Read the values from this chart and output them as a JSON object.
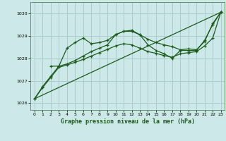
{
  "title": "Graphe pression niveau de la mer (hPa)",
  "bg_color": "#cce8e8",
  "grid_color": "#aacccc",
  "line_color": "#1a5c1a",
  "xlim": [
    -0.5,
    23.5
  ],
  "ylim": [
    1025.7,
    1030.5
  ],
  "yticks": [
    1026,
    1027,
    1028,
    1029,
    1030
  ],
  "xticks": [
    0,
    1,
    2,
    3,
    4,
    5,
    6,
    7,
    8,
    9,
    10,
    11,
    12,
    13,
    14,
    15,
    16,
    17,
    18,
    19,
    20,
    21,
    22,
    23
  ],
  "series1_x": [
    0,
    1,
    2,
    3,
    4,
    5,
    6,
    7,
    8,
    9,
    10,
    11,
    12,
    13,
    14,
    15,
    16,
    17,
    18,
    19,
    20,
    21,
    22,
    23
  ],
  "series1_y": [
    1026.2,
    1026.75,
    1027.2,
    1027.65,
    1027.75,
    1027.9,
    1028.1,
    1028.3,
    1028.45,
    1028.6,
    1029.05,
    1029.2,
    1029.2,
    1029.05,
    1028.6,
    1028.35,
    1028.2,
    1028.0,
    1028.35,
    1028.35,
    1028.35,
    1028.8,
    1029.5,
    1030.05
  ],
  "series2_x": [
    0,
    1,
    2,
    3,
    4,
    5,
    6,
    7,
    8,
    9,
    10,
    11,
    12,
    13,
    14,
    15,
    16,
    17,
    18,
    19,
    20,
    21,
    22,
    23
  ],
  "series2_y": [
    1026.2,
    1026.7,
    1027.15,
    1027.6,
    1027.7,
    1027.82,
    1027.95,
    1028.1,
    1028.25,
    1028.4,
    1028.55,
    1028.65,
    1028.6,
    1028.45,
    1028.3,
    1028.22,
    1028.12,
    1028.05,
    1028.2,
    1028.25,
    1028.3,
    1028.55,
    1028.9,
    1030.05
  ],
  "series3_x": [
    2,
    3,
    4,
    5,
    6,
    7,
    8,
    9,
    10,
    11,
    12,
    13,
    14,
    15,
    16,
    17,
    18,
    19,
    20,
    21,
    22,
    23
  ],
  "series3_y": [
    1027.65,
    1027.65,
    1028.45,
    1028.7,
    1028.9,
    1028.65,
    1028.7,
    1028.8,
    1029.05,
    1029.2,
    1029.25,
    1029.05,
    1028.85,
    1028.7,
    1028.6,
    1028.52,
    1028.38,
    1028.42,
    1028.38,
    1028.75,
    1029.55,
    1030.05
  ],
  "series4_x": [
    0,
    23
  ],
  "series4_y": [
    1026.2,
    1030.05
  ]
}
